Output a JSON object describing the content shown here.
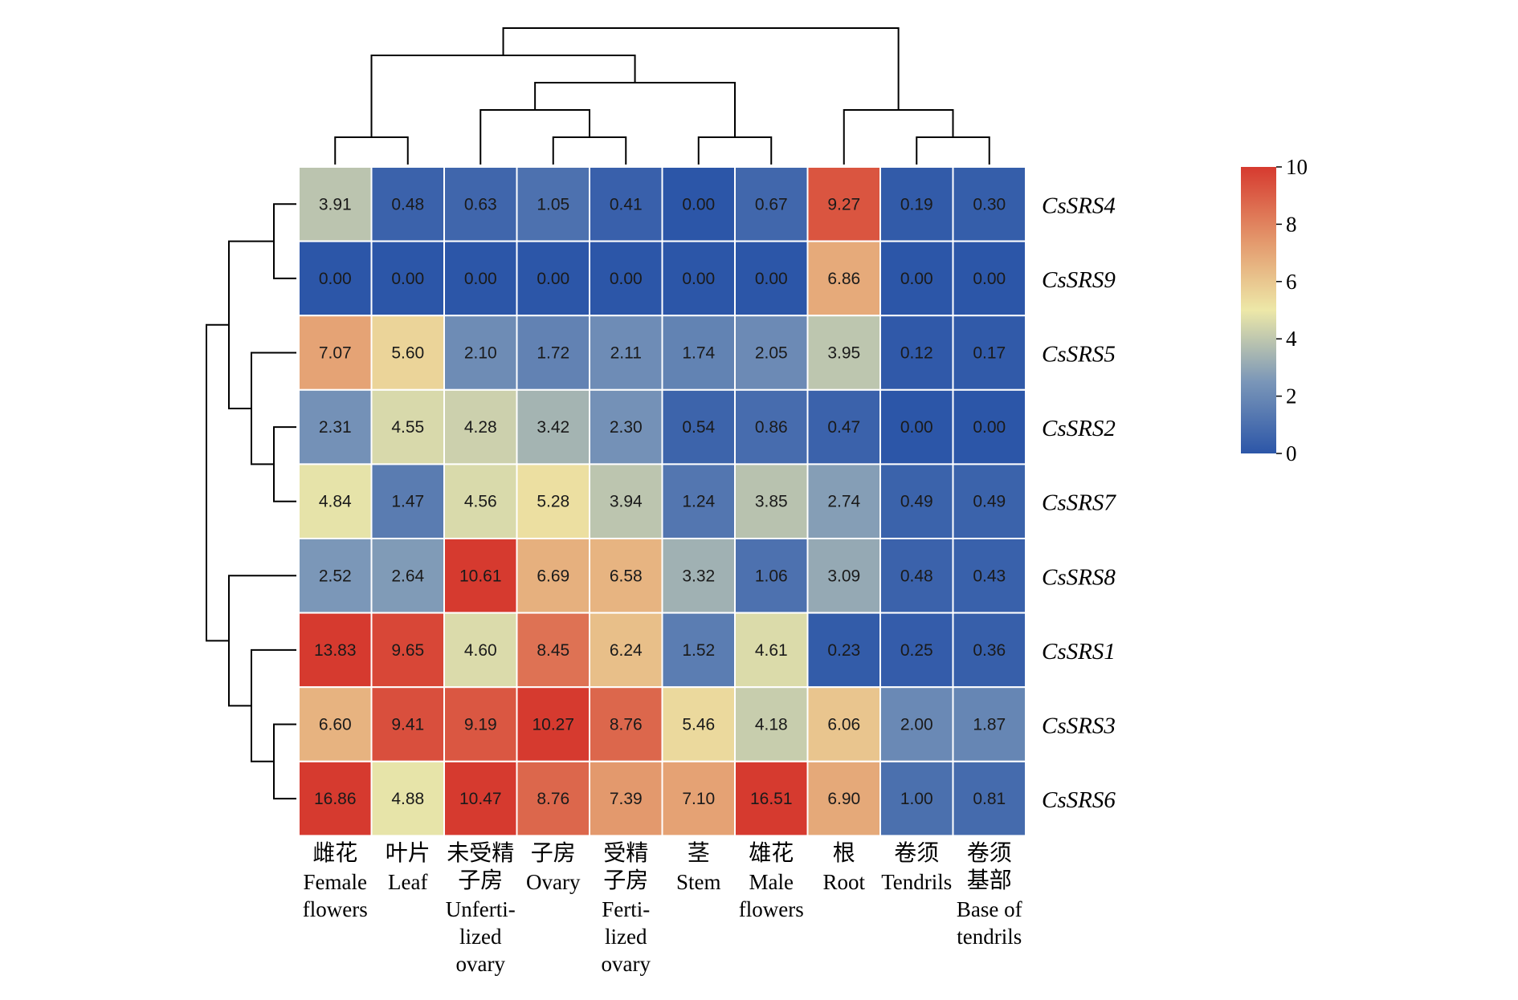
{
  "chart_data": {
    "type": "heatmap",
    "title": "",
    "xlabel": "",
    "ylabel": "",
    "columns": [
      {
        "cn": [
          "雌花"
        ],
        "en": [
          "Female",
          "flowers"
        ]
      },
      {
        "cn": [
          "叶片"
        ],
        "en": [
          "Leaf"
        ]
      },
      {
        "cn": [
          "未受精",
          "子房"
        ],
        "en": [
          "Unferti-",
          "lized",
          "ovary"
        ]
      },
      {
        "cn": [
          "子房"
        ],
        "en": [
          "Ovary"
        ]
      },
      {
        "cn": [
          "受精",
          "子房"
        ],
        "en": [
          "Ferti-",
          "lized",
          "ovary"
        ]
      },
      {
        "cn": [
          "茎"
        ],
        "en": [
          "Stem"
        ]
      },
      {
        "cn": [
          "雄花"
        ],
        "en": [
          "Male",
          "flowers"
        ]
      },
      {
        "cn": [
          "根"
        ],
        "en": [
          "Root"
        ]
      },
      {
        "cn": [
          "卷须"
        ],
        "en": [
          "Tendrils"
        ]
      },
      {
        "cn": [
          "卷须",
          "基部"
        ],
        "en": [
          "Base of",
          "tendrils"
        ]
      }
    ],
    "rows": [
      "CsSRS4",
      "CsSRS9",
      "CsSRS5",
      "CsSRS2",
      "CsSRS7",
      "CsSRS8",
      "CsSRS1",
      "CsSRS3",
      "CsSRS6"
    ],
    "values": [
      [
        "3.91",
        "0.48",
        "0.63",
        "1.05",
        "0.41",
        "0.00",
        "0.67",
        "9.27",
        "0.19",
        "0.30"
      ],
      [
        "0.00",
        "0.00",
        "0.00",
        "0.00",
        "0.00",
        "0.00",
        "0.00",
        "6.86",
        "0.00",
        "0.00"
      ],
      [
        "7.07",
        "5.60",
        "2.10",
        "1.72",
        "2.11",
        "1.74",
        "2.05",
        "3.95",
        "0.12",
        "0.17"
      ],
      [
        "2.31",
        "4.55",
        "4.28",
        "3.42",
        "2.30",
        "0.54",
        "0.86",
        "0.47",
        "0.00",
        "0.00"
      ],
      [
        "4.84",
        "1.47",
        "4.56",
        "5.28",
        "3.94",
        "1.24",
        "3.85",
        "2.74",
        "0.49",
        "0.49"
      ],
      [
        "2.52",
        "2.64",
        "10.61",
        "6.69",
        "6.58",
        "3.32",
        "1.06",
        "3.09",
        "0.48",
        "0.43"
      ],
      [
        "13.83",
        "9.65",
        "4.60",
        "8.45",
        "6.24",
        "1.52",
        "4.61",
        "0.23",
        "0.25",
        "0.36"
      ],
      [
        "6.60",
        "9.41",
        "9.19",
        "10.27",
        "8.76",
        "5.46",
        "4.18",
        "6.06",
        "2.00",
        "1.87"
      ],
      [
        "16.86",
        "4.88",
        "10.47",
        "8.76",
        "7.39",
        "7.10",
        "16.51",
        "6.90",
        "1.00",
        "0.81"
      ]
    ],
    "color_scale": {
      "min": 0,
      "max": 10,
      "ticks": [
        "0",
        "2",
        "4",
        "6",
        "8",
        "10"
      ],
      "stops": [
        "#2c56a8",
        "#7a96b8",
        "#ede8a8",
        "#e3956a",
        "#d63a2f"
      ]
    },
    "column_dendrogram": [
      [
        3,
        4
      ],
      [
        2,
        10
      ],
      [
        5,
        6
      ],
      [
        11,
        12
      ],
      [
        0,
        1
      ],
      [
        8,
        9
      ],
      [
        7,
        15
      ],
      [
        13,
        14
      ],
      [
        16,
        17
      ]
    ],
    "row_dendrogram": [
      [
        0,
        1
      ],
      [
        3,
        4
      ],
      [
        2,
        10
      ],
      [
        7,
        8
      ],
      [
        6,
        12
      ],
      [
        5,
        13
      ],
      [
        9,
        11
      ],
      [
        14,
        15
      ]
    ]
  }
}
